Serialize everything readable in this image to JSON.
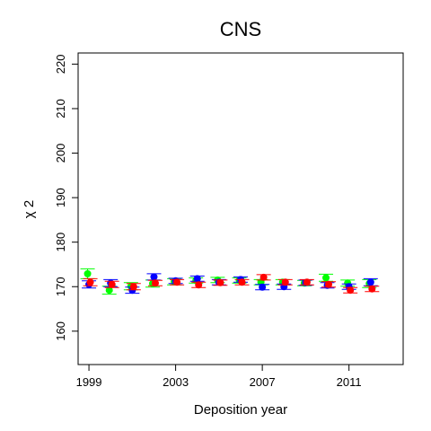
{
  "chart_data": {
    "type": "scatter",
    "title": "CNS",
    "xlabel": "Deposition year",
    "ylabel": "χ 2",
    "xlim": [
      1998.5,
      2013.5
    ],
    "ylim": [
      152.5,
      222.5
    ],
    "xticks": [
      1999,
      2003,
      2007,
      2011
    ],
    "yticks": [
      160,
      170,
      180,
      190,
      200,
      210,
      220
    ],
    "grid": false,
    "series": [
      {
        "color": "#00ff00",
        "x": [
          1999,
          2000,
          2001,
          2002,
          2003,
          2004,
          2005,
          2006,
          2007,
          2008,
          2009,
          2010,
          2011,
          2012
        ],
        "y": [
          172.9,
          169.2,
          170.1,
          170.7,
          171.1,
          171.4,
          171.5,
          171.4,
          171.0,
          171.0,
          170.8,
          172.0,
          170.8,
          170.7
        ],
        "err": [
          1.1,
          0.9,
          0.8,
          0.8,
          0.7,
          0.6,
          0.6,
          0.6,
          0.6,
          0.6,
          0.6,
          0.8,
          0.7,
          0.9
        ]
      },
      {
        "color": "#0000ff",
        "x": [
          1999,
          2000,
          2001,
          2002,
          2003,
          2004,
          2005,
          2006,
          2007,
          2008,
          2009,
          2010,
          2011,
          2012
        ],
        "y": [
          170.5,
          170.8,
          169.2,
          172.2,
          171.3,
          171.8,
          171.0,
          171.6,
          169.9,
          170.0,
          170.9,
          170.3,
          170.0,
          171.0
        ],
        "err": [
          0.8,
          0.8,
          0.7,
          0.7,
          0.6,
          0.6,
          0.6,
          0.6,
          0.6,
          0.6,
          0.6,
          0.6,
          0.6,
          0.8
        ]
      },
      {
        "color": "#ff0000",
        "x": [
          1999,
          2000,
          2001,
          2002,
          2003,
          2004,
          2005,
          2006,
          2007,
          2008,
          2009,
          2010,
          2011,
          2012
        ],
        "y": [
          171.0,
          170.5,
          170.0,
          170.8,
          171.0,
          170.4,
          170.9,
          171.0,
          172.1,
          171.0,
          171.0,
          170.5,
          169.2,
          169.5
        ],
        "err": [
          0.8,
          0.7,
          0.7,
          0.6,
          0.6,
          0.6,
          0.6,
          0.6,
          0.6,
          0.6,
          0.6,
          0.6,
          0.6,
          0.6
        ]
      }
    ]
  }
}
